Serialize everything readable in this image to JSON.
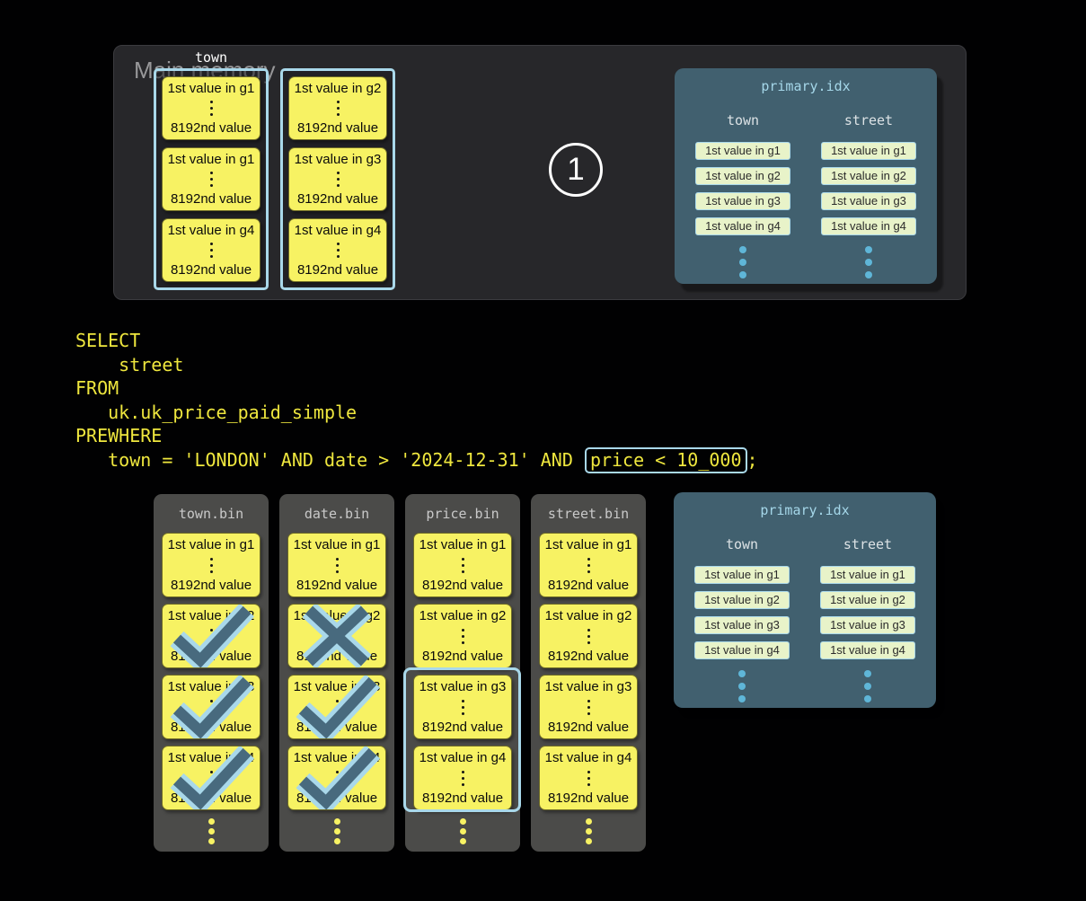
{
  "colors": {
    "accent_blue": "#a9d8ea",
    "granule_yellow": "#f7f263",
    "index_entry_green": "#e8f3c9",
    "index_panel_slate": "#41606f",
    "dot_blue": "#5fb6d8",
    "mark_dark": "#486a7e",
    "sql_yellow": "#efe73e",
    "memory_panel_gray": "#27272a",
    "bin_panel_gray": "#4b4b49"
  },
  "top_panel": {
    "title": "Main memory",
    "step_label": "1",
    "column_label": "town",
    "columns": [
      {
        "granules": [
          {
            "first": "1st value in g1",
            "last": "8192nd value"
          },
          {
            "first": "1st value in g1",
            "last": "8192nd value"
          },
          {
            "first": "1st value in g4",
            "last": "8192nd value"
          }
        ]
      },
      {
        "granules": [
          {
            "first": "1st value in g2",
            "last": "8192nd value"
          },
          {
            "first": "1st value in g3",
            "last": "8192nd value"
          },
          {
            "first": "1st value in g4",
            "last": "8192nd value"
          }
        ]
      }
    ]
  },
  "sql": {
    "line1": "SELECT",
    "line2": "    street",
    "line3": "FROM",
    "line4": "   uk.uk_price_paid_simple",
    "line5": "PREWHERE",
    "line6_prefix": "   town = 'LONDON' AND date > '2024-12-31' AND ",
    "line6_boxed": "price < 10_000",
    "line6_suffix": ";"
  },
  "bin_columns": [
    {
      "name": "town.bin",
      "granules": [
        {
          "first": "1st value in g1",
          "last": "8192nd value",
          "mark": "none"
        },
        {
          "first": "1st value in g2",
          "last": "8192nd value",
          "mark": "check"
        },
        {
          "first": "1st value in g3",
          "last": "8192nd value",
          "mark": "check"
        },
        {
          "first": "1st value in g4",
          "last": "8192nd value",
          "mark": "check"
        }
      ]
    },
    {
      "name": "date.bin",
      "granules": [
        {
          "first": "1st value in g1",
          "last": "8192nd value",
          "mark": "none"
        },
        {
          "first": "1st value in g2",
          "last": "8192nd value",
          "mark": "cross"
        },
        {
          "first": "1st value in g3",
          "last": "8192nd value",
          "mark": "check"
        },
        {
          "first": "1st value in g4",
          "last": "8192nd value",
          "mark": "check"
        }
      ]
    },
    {
      "name": "price.bin",
      "highlighted_granules": "g3-g4",
      "granules": [
        {
          "first": "1st value in g1",
          "last": "8192nd value",
          "mark": "none"
        },
        {
          "first": "1st value in g2",
          "last": "8192nd value",
          "mark": "none"
        },
        {
          "first": "1st value in g3",
          "last": "8192nd value",
          "mark": "none"
        },
        {
          "first": "1st value in g4",
          "last": "8192nd value",
          "mark": "none"
        }
      ]
    },
    {
      "name": "street.bin",
      "granules": [
        {
          "first": "1st value in g1",
          "last": "8192nd value",
          "mark": "none"
        },
        {
          "first": "1st value in g2",
          "last": "8192nd value",
          "mark": "none"
        },
        {
          "first": "1st value in g3",
          "last": "8192nd value",
          "mark": "none"
        },
        {
          "first": "1st value in g4",
          "last": "8192nd value",
          "mark": "none"
        }
      ]
    }
  ],
  "primary_index": {
    "title": "primary.idx",
    "columns": [
      {
        "name": "town",
        "entries": [
          "1st value in g1",
          "1st value in g2",
          "1st value in g3",
          "1st value in g4"
        ]
      },
      {
        "name": "street",
        "entries": [
          "1st value in g1",
          "1st value in g2",
          "1st value in g3",
          "1st value in g4"
        ]
      }
    ]
  }
}
